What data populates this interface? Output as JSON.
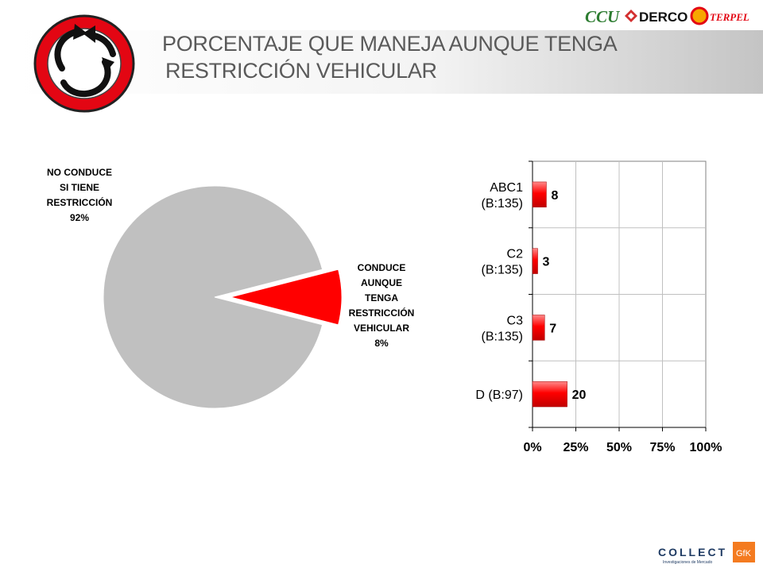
{
  "header": {
    "title_line1": "PORCENTAJE QUE MANEJA AUNQUE TENGA",
    "title_line2": "RESTRICCIÓN VEHICULAR",
    "sponsor_logos": [
      "CCU",
      "DERCO",
      "TERPEL"
    ],
    "road_sign_icon": "circular-arrows-traffic-sign-icon"
  },
  "colors": {
    "accent_red": "#ff0000",
    "pie_grey": "#c0c0c0",
    "sign_red": "#e30613",
    "title_grey": "#5a5a5a"
  },
  "chart_data": [
    {
      "type": "pie",
      "labels": [
        [
          "NO CONDUCE",
          "SI TIENE",
          "RESTRICCIÓN",
          "92%"
        ],
        [
          "CONDUCE",
          "AUNQUE",
          "TENGA",
          "RESTRICCIÓN",
          "VEHICULAR",
          "8%"
        ]
      ],
      "categories": [
        "NO CONDUCE SI TIENE RESTRICCIÓN",
        "CONDUCE AUNQUE TENGA RESTRICCIÓN VEHICULAR"
      ],
      "values": [
        92,
        8
      ],
      "colors": [
        "#c0c0c0",
        "#ff0000"
      ],
      "exploded": "CONDUCE AUNQUE TENGA RESTRICCIÓN VEHICULAR"
    },
    {
      "type": "bar",
      "orientation": "horizontal",
      "categories": [
        [
          "ABC1",
          "(B:135)"
        ],
        [
          "C2",
          "(B:135)"
        ],
        [
          "C3",
          "(B:135)"
        ],
        [
          "D (B:97)"
        ]
      ],
      "values": [
        8,
        3,
        7,
        20
      ],
      "value_labels": [
        "8",
        "3",
        "7",
        "20"
      ],
      "xlim": [
        0,
        100
      ],
      "x_ticks": [
        "0%",
        "25%",
        "50%",
        "75%",
        "100%"
      ],
      "grid": true,
      "color": "#ff0000"
    }
  ],
  "footer": {
    "brand": "COLLECT",
    "brand_sub": "Investigaciones de Mercado",
    "partner": "GfK"
  }
}
